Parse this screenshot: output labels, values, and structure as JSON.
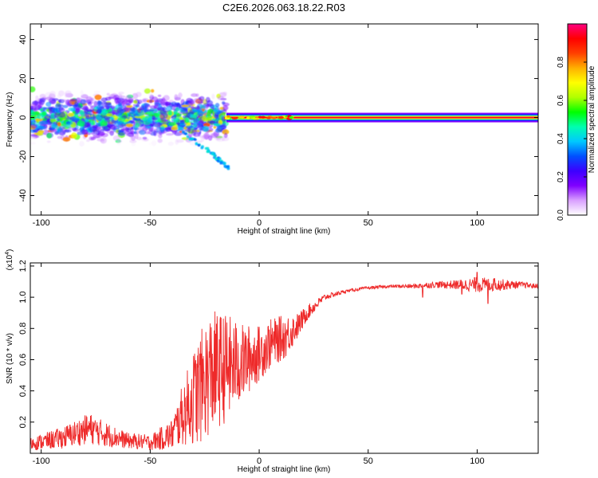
{
  "title": "C2E6.2026.063.18.22.R03",
  "chart_data": [
    {
      "type": "heatmap",
      "title": "C2E6.2026.063.18.22.R03",
      "xlabel": "Height of straight line (km)",
      "ylabel": "Frequency (Hz)",
      "xlim": [
        -105,
        128
      ],
      "ylim": [
        -50,
        48
      ],
      "xticks": [
        -100,
        -50,
        0,
        50,
        100
      ],
      "yticks": [
        -40,
        -20,
        0,
        20,
        40
      ],
      "colorbar": {
        "label": "Normalized spectral amplitude",
        "range": [
          0.0,
          1.0
        ],
        "ticks": [
          0.0,
          0.2,
          0.4,
          0.6,
          0.8
        ],
        "tick_labels": [
          "0.0",
          "0.2",
          "0.4",
          "0.6",
          "0.8"
        ],
        "colors": [
          "#ffffff",
          "#d9a0ff",
          "#8000ff",
          "#3c00ff",
          "#0050ff",
          "#00c8ff",
          "#00ffb0",
          "#00ff00",
          "#b0ff00",
          "#ffff00",
          "#ffb000",
          "#ff4000",
          "#ff0000",
          "#ff0080"
        ]
      },
      "description_points": {
        "noisy_region_x": [
          -105,
          -15
        ],
        "noisy_region_freq_spread_hz": [
          -10,
          10
        ],
        "descending_tail": {
          "x": [
            -35,
            -22,
            -14
          ],
          "y": [
            -8,
            -18,
            -26
          ]
        },
        "carrier_line": {
          "x": [
            -15,
            128
          ],
          "freq_hz": 0,
          "amplitude": 0.95
        }
      }
    },
    {
      "type": "line",
      "title": "",
      "xlabel": "Height of straight line (km)",
      "ylabel": "SNR (10 * v/v)",
      "y_multiplier_label": "(x10",
      "y_multiplier_exp": "4",
      "y_multiplier_close": ")",
      "xlim": [
        -105,
        128
      ],
      "ylim": [
        0.0,
        1.22
      ],
      "xticks": [
        -100,
        -50,
        0,
        50,
        100
      ],
      "yticks": [
        0.2,
        0.4,
        0.6,
        0.8,
        1.0,
        1.2
      ],
      "ytick_labels": [
        "0.2",
        "0.4",
        "0.6",
        "0.8",
        "1.0",
        "1.2"
      ],
      "line_color": "#ee2a2a",
      "envelope_x": [
        -105,
        -90,
        -78,
        -70,
        -60,
        -50,
        -40,
        -35,
        -28,
        -22,
        -15,
        -8,
        0,
        5,
        12,
        18,
        22,
        30,
        40,
        50,
        60,
        70,
        80,
        90,
        100,
        110,
        120,
        128
      ],
      "envelope_y": [
        0.06,
        0.1,
        0.16,
        0.12,
        0.08,
        0.07,
        0.12,
        0.25,
        0.4,
        0.52,
        0.55,
        0.58,
        0.64,
        0.7,
        0.75,
        0.82,
        0.9,
        1.0,
        1.04,
        1.06,
        1.07,
        1.07,
        1.08,
        1.08,
        1.08,
        1.08,
        1.08,
        1.07
      ],
      "noise_amplitude": [
        0.04,
        0.07,
        0.1,
        0.08,
        0.05,
        0.05,
        0.1,
        0.2,
        0.35,
        0.4,
        0.35,
        0.25,
        0.18,
        0.16,
        0.14,
        0.08,
        0.05,
        0.02,
        0.01,
        0.01,
        0.01,
        0.015,
        0.02,
        0.03,
        0.05,
        0.04,
        0.02,
        0.015
      ],
      "spikes": [
        {
          "x": 75,
          "y": 1.0
        },
        {
          "x": 93,
          "y": 1.02
        },
        {
          "x": 100,
          "y": 1.16
        },
        {
          "x": 105,
          "y": 0.96
        },
        {
          "x": 108,
          "y": 1.12
        }
      ]
    }
  ]
}
